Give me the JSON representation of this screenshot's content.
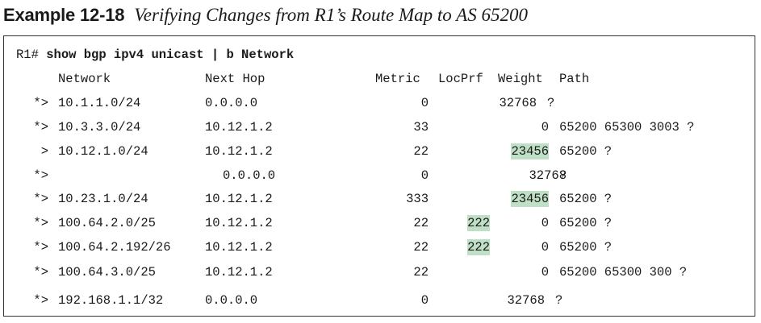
{
  "caption": {
    "label": "Example 12-18",
    "title": "Verifying Changes from R1’s Route Map to AS 65200"
  },
  "command": {
    "prompt": "R1# ",
    "text": "show bgp ipv4 unicast | b Network"
  },
  "headers": {
    "network": "Network",
    "next_hop": "Next Hop",
    "metric": "Metric",
    "locprf": "LocPrf",
    "weight": "Weight",
    "path": "Path"
  },
  "highlight_color": "#bfe0c6",
  "rows": [
    {
      "status": "*>",
      "network": "10.1.1.0/24",
      "next_hop": "0.0.0.0",
      "metric": "0",
      "locprf": "",
      "weight": "32768",
      "path": "?",
      "weight_highlight": false,
      "locprf_highlight": false
    },
    {
      "status": "*>",
      "network": "10.3.3.0/24",
      "next_hop": "10.12.1.2",
      "metric": "33",
      "locprf": "",
      "weight": "0",
      "path": "65200 65300 3003 ?",
      "weight_highlight": false,
      "locprf_highlight": false
    },
    {
      "status": ">",
      "network": "10.12.1.0/24",
      "next_hop": "10.12.1.2",
      "metric": "22",
      "locprf": "",
      "weight": "23456",
      "path": "65200 ?",
      "weight_highlight": true,
      "locprf_highlight": false
    },
    {
      "status": "*>",
      "network": "",
      "next_hop": "0.0.0.0",
      "metric": "0",
      "locprf": "",
      "weight": "32768",
      "path": "?",
      "weight_highlight": false,
      "locprf_highlight": false
    },
    {
      "status": "*>",
      "network": "10.23.1.0/24",
      "next_hop": "10.12.1.2",
      "metric": "333",
      "locprf": "",
      "weight": "23456",
      "path": "65200 ?",
      "weight_highlight": true,
      "locprf_highlight": false
    },
    {
      "status": "*>",
      "network": "100.64.2.0/25",
      "next_hop": "10.12.1.2",
      "metric": "22",
      "locprf": "222",
      "weight": "0",
      "path": "65200 ?",
      "weight_highlight": false,
      "locprf_highlight": true
    },
    {
      "status": "*>",
      "network": "100.64.2.192/26",
      "next_hop": "10.12.1.2",
      "metric": "22",
      "locprf": "222",
      "weight": "0",
      "path": "65200 ?",
      "weight_highlight": false,
      "locprf_highlight": true
    },
    {
      "status": "*>",
      "network": "100.64.3.0/25",
      "next_hop": "10.12.1.2",
      "metric": "22",
      "locprf": "",
      "weight": "0",
      "path": "65200 65300 300 ?",
      "weight_highlight": false,
      "locprf_highlight": false
    },
    {
      "status": "*>",
      "network": "192.168.1.1/32",
      "next_hop": "0.0.0.0",
      "metric": "0",
      "locprf": "",
      "weight": "32768",
      "path": "?",
      "weight_highlight": false,
      "locprf_highlight": false
    }
  ]
}
